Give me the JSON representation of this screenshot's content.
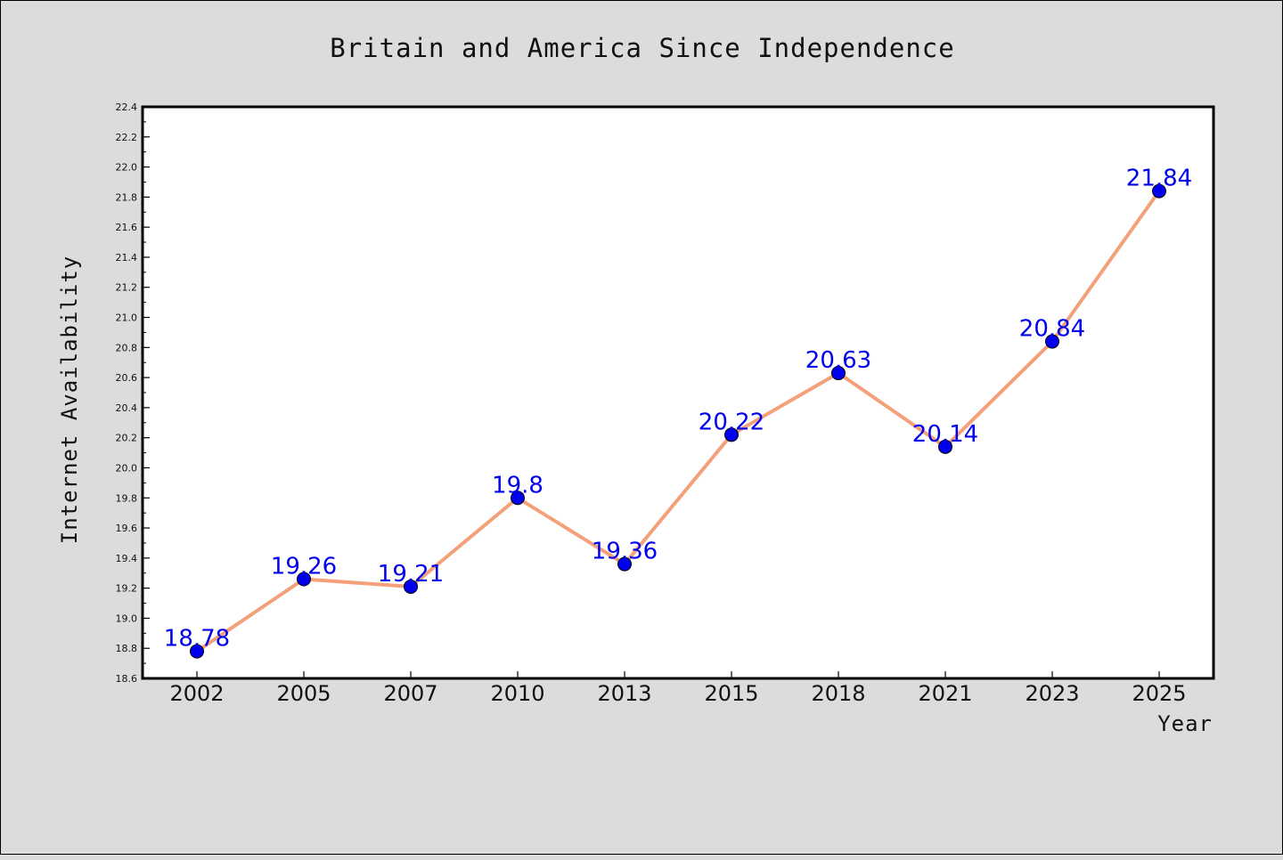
{
  "chart_data": {
    "type": "line",
    "title": "Britain and America Since Independence",
    "xlabel": "Year",
    "ylabel": "Internet Availability",
    "categories": [
      "2002",
      "2005",
      "2007",
      "2010",
      "2013",
      "2015",
      "2018",
      "2021",
      "2023",
      "2025"
    ],
    "series": [
      {
        "values": [
          18.78,
          19.26,
          19.21,
          19.8,
          19.36,
          20.22,
          20.63,
          20.14,
          20.84,
          21.84
        ],
        "labels": [
          "18.78",
          "19.26",
          "19.21",
          "19.8",
          "19.36",
          "20.22",
          "20.63",
          "20.14",
          "20.84",
          "21.84"
        ]
      }
    ],
    "ylim": [
      18.6,
      22.4
    ],
    "y_ticks": [
      "18.6",
      "18.8",
      "19.0",
      "19.2",
      "19.4",
      "19.6",
      "19.8",
      "20.0",
      "20.2",
      "20.4",
      "20.6",
      "20.8",
      "21.0",
      "21.2",
      "21.4",
      "21.6",
      "21.8",
      "22.0",
      "22.2",
      "22.4"
    ],
    "grid": false,
    "legend": "none",
    "colors": {
      "line": "#f4a07a",
      "marker": "#0000ee",
      "data_label": "#0000ee",
      "plot_background": "#ffffff",
      "figure_background": "#dcdcdc"
    }
  }
}
